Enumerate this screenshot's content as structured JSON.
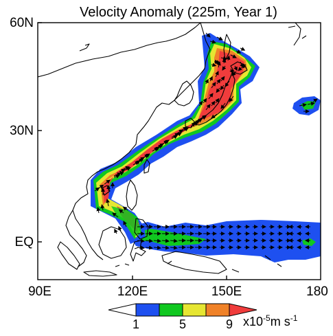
{
  "title": "Velocity Anomaly (225m, Year 1)",
  "axes": {
    "lon_ticks": [
      "90E",
      "120E",
      "150E",
      "180"
    ],
    "lat_ticks": [
      "60N",
      "30N",
      "EQ"
    ],
    "lon_range": [
      90,
      180
    ],
    "lat_range": [
      -10,
      60
    ]
  },
  "colorbar": {
    "tick_labels": [
      "1",
      "5",
      "9"
    ],
    "unit_parts": {
      "base": "x10",
      "exp": "-5",
      "mid": "m s",
      "exp2": "-1"
    },
    "colors": [
      "#ffffff",
      "#1e50f0",
      "#10c820",
      "#e6e632",
      "#f08228",
      "#f03c3c"
    ],
    "extend": "both"
  },
  "shading_colors": {
    "blue": "#1e50f0",
    "green": "#10c820",
    "yellow": "#e6e632",
    "orange": "#f08228",
    "red": "#f03c3c"
  },
  "features": {
    "coastlines": "black outlines of East Asia, Japan, Philippines, Indonesia, New Guinea",
    "vectors": "black arrows showing anomaly direction along the jet"
  }
}
